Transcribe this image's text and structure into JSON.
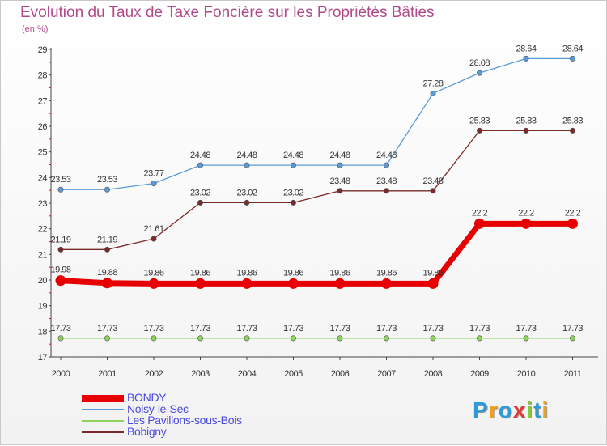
{
  "chart_data": {
    "type": "line",
    "title": "Evolution du Taux de Taxe Foncière sur les Propriétés Bâties",
    "ylabel": "(en %)",
    "xlabel": "",
    "x": [
      "2000",
      "2001",
      "2002",
      "2003",
      "2004",
      "2005",
      "2006",
      "2007",
      "2008",
      "2009",
      "2010",
      "2011"
    ],
    "ylim": [
      17,
      29
    ],
    "yticks": [
      17,
      18,
      19,
      20,
      21,
      22,
      23,
      24,
      25,
      26,
      27,
      28,
      29
    ],
    "series": [
      {
        "name": "BONDY",
        "color": "#e60000",
        "values": [
          19.98,
          19.88,
          19.86,
          19.86,
          19.86,
          19.86,
          19.86,
          19.86,
          19.86,
          22.2,
          22.2,
          22.2
        ],
        "labels": [
          "19.98",
          "19.88",
          "19.86",
          "19.86",
          "19.86",
          "19.86",
          "19.86",
          "19.86",
          "19.86",
          "22.2",
          "22.2",
          "22.2"
        ]
      },
      {
        "name": "Noisy-le-Sec",
        "color": "#5b9bd5",
        "values": [
          23.53,
          23.53,
          23.77,
          24.48,
          24.48,
          24.48,
          24.48,
          24.48,
          27.28,
          28.08,
          28.64,
          28.64
        ],
        "labels": [
          "23.53",
          "23.53",
          "23.77",
          "24.48",
          "24.48",
          "24.48",
          "24.48",
          "24.48",
          "27.28",
          "28.08",
          "28.64",
          "28.64"
        ]
      },
      {
        "name": "Les Pavillons-sous-Bois",
        "color": "#8cd45a",
        "values": [
          17.73,
          17.73,
          17.73,
          17.73,
          17.73,
          17.73,
          17.73,
          17.73,
          17.73,
          17.73,
          17.73,
          17.73
        ],
        "labels": [
          "17.73",
          "17.73",
          "17.73",
          "17.73",
          "17.73",
          "17.73",
          "17.73",
          "17.73",
          "17.73",
          "17.73",
          "17.73",
          "17.73"
        ]
      },
      {
        "name": "Bobigny",
        "color": "#7b2a2a",
        "values": [
          21.19,
          21.19,
          21.61,
          23.02,
          23.02,
          23.02,
          23.48,
          23.48,
          23.48,
          25.83,
          25.83,
          25.83
        ],
        "labels": [
          "21.19",
          "21.19",
          "21.61",
          "23.02",
          "23.02",
          "23.02",
          "23.48",
          "23.48",
          "23.48",
          "25.83",
          "25.83",
          "25.83"
        ]
      }
    ],
    "grid": false,
    "legend": "bottom-left"
  },
  "logo": {
    "letters": [
      "P",
      "r",
      "o",
      "x",
      "i",
      "t",
      "i"
    ],
    "colors": [
      "#2e9bd8",
      "#f0a020",
      "#2e9bd8",
      "#e23a3a",
      "#8cc63f",
      "#2e9bd8",
      "#f0a020"
    ]
  }
}
